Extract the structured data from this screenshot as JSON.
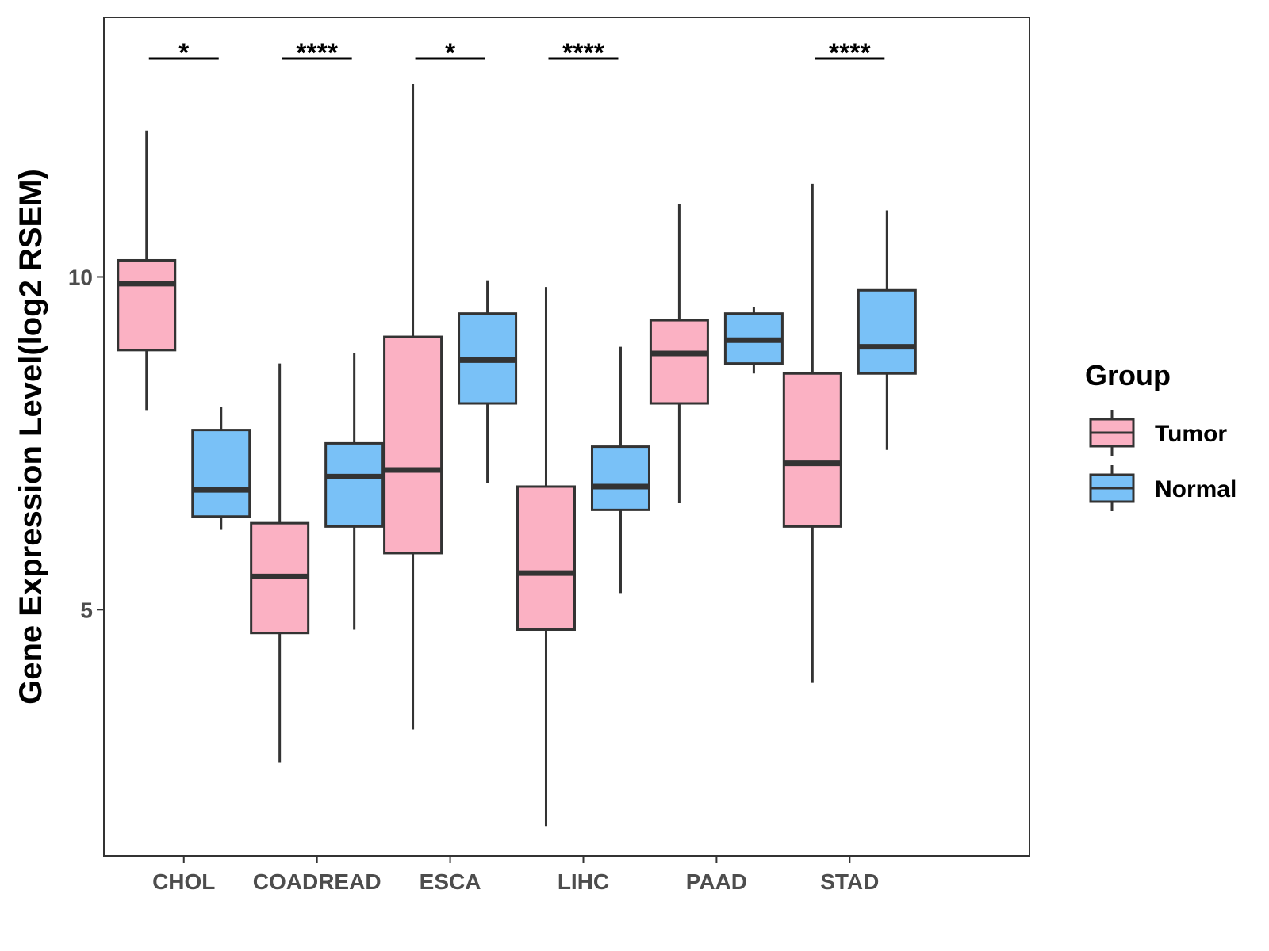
{
  "chart_data": {
    "type": "boxplot",
    "title": "",
    "xlabel": "",
    "ylabel": "Gene Expression Level(log2 RSEM)",
    "ylim": [
      1.3,
      13.9
    ],
    "yticks": [
      5,
      10
    ],
    "categories": [
      "CHOL",
      "COADREAD",
      "ESCA",
      "LIHC",
      "PAAD",
      "STAD"
    ],
    "series": [
      {
        "name": "Tumor",
        "color": "#FBB1C3",
        "boxes": [
          {
            "min": 8.0,
            "q1": 8.9,
            "median": 9.9,
            "q3": 10.25,
            "max": 12.2
          },
          {
            "min": 2.7,
            "q1": 4.65,
            "median": 5.5,
            "q3": 6.3,
            "max": 8.7
          },
          {
            "min": 3.2,
            "q1": 5.85,
            "median": 7.1,
            "q3": 9.1,
            "max": 12.9
          },
          {
            "min": 1.75,
            "q1": 4.7,
            "median": 5.55,
            "q3": 6.85,
            "max": 9.85
          },
          {
            "min": 6.6,
            "q1": 8.1,
            "median": 8.85,
            "q3": 9.35,
            "max": 11.1
          },
          {
            "min": 3.9,
            "q1": 6.25,
            "median": 7.2,
            "q3": 8.55,
            "max": 11.4
          }
        ]
      },
      {
        "name": "Normal",
        "color": "#79C1F7",
        "boxes": [
          {
            "min": 6.2,
            "q1": 6.4,
            "median": 6.8,
            "q3": 7.7,
            "max": 8.05
          },
          {
            "min": 4.7,
            "q1": 6.25,
            "median": 7.0,
            "q3": 7.5,
            "max": 8.85
          },
          {
            "min": 6.9,
            "q1": 8.1,
            "median": 8.75,
            "q3": 9.45,
            "max": 9.95
          },
          {
            "min": 5.25,
            "q1": 6.5,
            "median": 6.85,
            "q3": 7.45,
            "max": 8.95
          },
          {
            "min": 8.55,
            "q1": 8.7,
            "median": 9.05,
            "q3": 9.45,
            "max": 9.55
          },
          {
            "min": 7.4,
            "q1": 8.55,
            "median": 8.95,
            "q3": 9.8,
            "max": 11.0
          }
        ]
      }
    ],
    "significance": [
      "*",
      "****",
      "*",
      "****",
      "",
      "****"
    ],
    "legend": {
      "title": "Group",
      "position": "right",
      "entries": [
        "Tumor",
        "Normal"
      ]
    },
    "grid": false
  }
}
